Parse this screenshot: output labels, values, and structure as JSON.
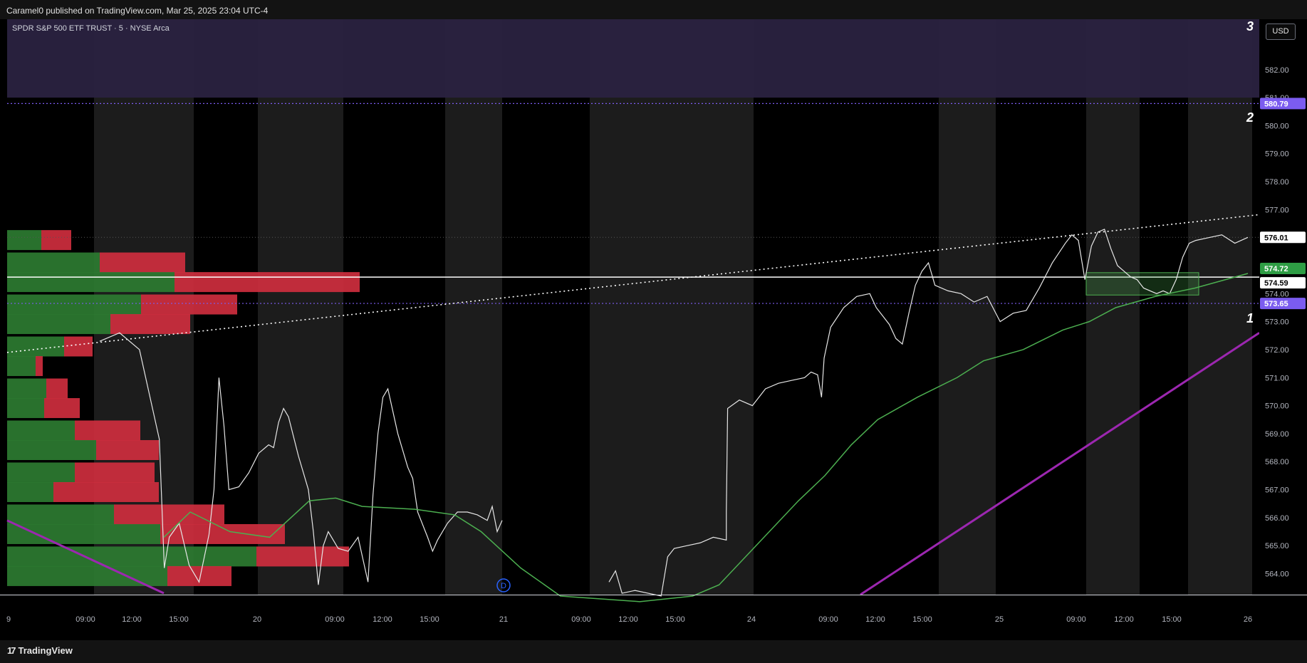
{
  "header": {
    "published_line": "Caramel0 published on TradingView.com, Mar 25, 2025 23:04 UTC-4"
  },
  "symbol": {
    "title": "SPDR S&P 500 ETF TRUST · 5 · NYSE Arca"
  },
  "currency_button": "USD",
  "zone_labels": [
    "3",
    "2",
    "1"
  ],
  "footer": {
    "brand": "TradingView",
    "logo_glyph": "17"
  },
  "colors": {
    "background": "#000000",
    "session_band": "#1c1c1c",
    "premium_zone": "#2a2240",
    "volume_buy": "#2e7d32",
    "volume_sell": "#d32f3f",
    "ma_line": "#4caf50",
    "trend_line": "#9c27b0",
    "level_line": "#7b5cf0",
    "price_line": "#ffffff"
  },
  "chart_data": {
    "type": "line",
    "symbol": "SPY",
    "interval": "5",
    "y_axis": {
      "range": [
        563.25,
        583.8
      ],
      "ticks": [
        "582.00",
        "581.00",
        "580.00",
        "579.00",
        "578.00",
        "577.00",
        "576.00",
        "575.00",
        "574.00",
        "573.00",
        "572.00",
        "571.00",
        "570.00",
        "569.00",
        "568.00",
        "567.00",
        "566.00",
        "565.00",
        "564.00"
      ]
    },
    "x_axis": {
      "ticks": [
        "9",
        "09:00",
        "12:00",
        "15:00",
        "20",
        "09:00",
        "12:00",
        "15:00",
        "21",
        "09:00",
        "12:00",
        "15:00",
        "24",
        "09:00",
        "12:00",
        "15:00",
        "25",
        "09:00",
        "12:00",
        "15:00",
        "26"
      ]
    },
    "price_labels": [
      {
        "value": "580.79",
        "style": "level"
      },
      {
        "value": "576.01",
        "style": "last"
      },
      {
        "value": "574.72",
        "style": "ma"
      },
      {
        "value": "574.59",
        "style": "line"
      },
      {
        "value": "573.65",
        "style": "level"
      }
    ],
    "levels": {
      "upper_dotted": 580.79,
      "lower_dotted": 573.65,
      "horizontal_white": 574.59,
      "premium_zone_bottom": 581.0
    },
    "price_series": [
      [
        0.0,
        572.3
      ],
      [
        0.02,
        572.6
      ],
      [
        0.04,
        572.0
      ],
      [
        0.06,
        568.8
      ],
      [
        0.065,
        564.2
      ],
      [
        0.07,
        565.3
      ],
      [
        0.08,
        565.8
      ],
      [
        0.09,
        564.3
      ],
      [
        0.1,
        563.7
      ],
      [
        0.11,
        565.4
      ],
      [
        0.115,
        567.0
      ],
      [
        0.12,
        571.0
      ],
      [
        0.125,
        569.3
      ],
      [
        0.13,
        567.0
      ],
      [
        0.14,
        567.1
      ],
      [
        0.15,
        567.6
      ],
      [
        0.16,
        568.3
      ],
      [
        0.17,
        568.6
      ],
      [
        0.175,
        568.5
      ],
      [
        0.18,
        569.4
      ],
      [
        0.185,
        569.9
      ],
      [
        0.19,
        569.6
      ],
      [
        0.2,
        568.2
      ],
      [
        0.21,
        567.0
      ],
      [
        0.215,
        565.5
      ],
      [
        0.22,
        563.6
      ],
      [
        0.225,
        565.0
      ],
      [
        0.23,
        565.5
      ],
      [
        0.24,
        564.9
      ],
      [
        0.25,
        564.8
      ],
      [
        0.26,
        565.3
      ],
      [
        0.27,
        563.7
      ],
      [
        0.275,
        566.8
      ],
      [
        0.28,
        569.0
      ],
      [
        0.285,
        570.3
      ],
      [
        0.29,
        570.6
      ],
      [
        0.3,
        569.0
      ],
      [
        0.31,
        567.8
      ],
      [
        0.315,
        567.4
      ],
      [
        0.32,
        566.2
      ],
      [
        0.33,
        565.3
      ],
      [
        0.335,
        564.8
      ],
      [
        0.34,
        565.2
      ],
      [
        0.35,
        565.8
      ],
      [
        0.36,
        566.2
      ],
      [
        0.37,
        566.2
      ],
      [
        0.38,
        566.1
      ],
      [
        0.39,
        565.9
      ],
      [
        0.395,
        566.4
      ],
      [
        0.4,
        565.5
      ],
      [
        0.405,
        565.9
      ]
    ],
    "price_series_2": [
      [
        0.51,
        563.7
      ],
      [
        0.515,
        564.1
      ],
      [
        0.52,
        563.3
      ],
      [
        0.53,
        563.4
      ],
      [
        0.55,
        563.2
      ],
      [
        0.555,
        564.6
      ],
      [
        0.56,
        564.9
      ],
      [
        0.57,
        565.0
      ],
      [
        0.58,
        565.1
      ],
      [
        0.59,
        565.3
      ],
      [
        0.6,
        565.2
      ],
      [
        0.6,
        566.2
      ],
      [
        0.601,
        569.9
      ],
      [
        0.61,
        570.2
      ],
      [
        0.62,
        570.0
      ],
      [
        0.63,
        570.6
      ],
      [
        0.64,
        570.8
      ],
      [
        0.65,
        570.9
      ],
      [
        0.66,
        571.0
      ],
      [
        0.665,
        571.2
      ],
      [
        0.67,
        571.1
      ],
      [
        0.673,
        570.3
      ],
      [
        0.675,
        571.7
      ],
      [
        0.68,
        572.8
      ],
      [
        0.69,
        573.5
      ],
      [
        0.7,
        573.9
      ],
      [
        0.71,
        574.0
      ],
      [
        0.715,
        573.5
      ],
      [
        0.72,
        573.2
      ],
      [
        0.725,
        572.9
      ],
      [
        0.73,
        572.4
      ],
      [
        0.735,
        572.2
      ],
      [
        0.74,
        573.3
      ],
      [
        0.745,
        574.3
      ],
      [
        0.75,
        574.8
      ],
      [
        0.755,
        575.1
      ],
      [
        0.76,
        574.3
      ],
      [
        0.77,
        574.1
      ],
      [
        0.78,
        574.0
      ],
      [
        0.79,
        573.7
      ],
      [
        0.8,
        573.9
      ],
      [
        0.81,
        573.0
      ],
      [
        0.82,
        573.3
      ],
      [
        0.83,
        573.4
      ],
      [
        0.84,
        574.2
      ],
      [
        0.85,
        575.1
      ],
      [
        0.86,
        575.8
      ],
      [
        0.865,
        576.1
      ],
      [
        0.87,
        575.9
      ],
      [
        0.875,
        574.5
      ],
      [
        0.88,
        575.7
      ],
      [
        0.885,
        576.2
      ],
      [
        0.89,
        576.3
      ],
      [
        0.895,
        575.6
      ],
      [
        0.9,
        575.0
      ],
      [
        0.91,
        574.6
      ],
      [
        0.915,
        574.5
      ],
      [
        0.92,
        574.2
      ],
      [
        0.93,
        574.0
      ],
      [
        0.935,
        574.1
      ],
      [
        0.94,
        574.0
      ],
      [
        0.945,
        574.5
      ],
      [
        0.95,
        575.3
      ],
      [
        0.955,
        575.8
      ],
      [
        0.96,
        575.9
      ],
      [
        0.97,
        576.0
      ],
      [
        0.98,
        576.1
      ],
      [
        0.99,
        575.8
      ],
      [
        1.0,
        576.01
      ]
    ],
    "ma_series": [
      [
        0.18,
        565.3
      ],
      [
        0.2,
        566.2
      ],
      [
        0.23,
        565.5
      ],
      [
        0.26,
        565.3
      ],
      [
        0.29,
        566.6
      ],
      [
        0.31,
        566.7
      ],
      [
        0.33,
        566.4
      ],
      [
        0.37,
        566.3
      ],
      [
        0.4,
        566.1
      ],
      [
        0.42,
        565.5
      ],
      [
        0.45,
        564.2
      ],
      [
        0.48,
        563.2
      ],
      [
        0.54,
        563.0
      ],
      [
        0.58,
        563.2
      ],
      [
        0.6,
        563.6
      ],
      [
        0.63,
        565.1
      ],
      [
        0.66,
        566.6
      ],
      [
        0.68,
        567.5
      ],
      [
        0.7,
        568.6
      ],
      [
        0.72,
        569.5
      ],
      [
        0.75,
        570.3
      ],
      [
        0.78,
        571.0
      ],
      [
        0.8,
        571.6
      ],
      [
        0.83,
        572.0
      ],
      [
        0.86,
        572.7
      ],
      [
        0.88,
        573.0
      ],
      [
        0.9,
        573.5
      ],
      [
        0.93,
        573.9
      ],
      [
        0.96,
        574.2
      ],
      [
        1.0,
        574.72
      ]
    ],
    "volume_profile": [
      {
        "price": 575.9,
        "buy": 48,
        "sell": 42
      },
      {
        "price": 575.1,
        "buy": 130,
        "sell": 120
      },
      {
        "price": 574.4,
        "buy": 235,
        "sell": 260
      },
      {
        "price": 573.6,
        "buy": 188,
        "sell": 135
      },
      {
        "price": 572.9,
        "buy": 145,
        "sell": 112
      },
      {
        "price": 572.1,
        "buy": 80,
        "sell": 40
      },
      {
        "price": 571.4,
        "buy": 40,
        "sell": 10
      },
      {
        "price": 570.6,
        "buy": 55,
        "sell": 30
      },
      {
        "price": 569.9,
        "buy": 52,
        "sell": 50
      },
      {
        "price": 569.1,
        "buy": 95,
        "sell": 92
      },
      {
        "price": 568.4,
        "buy": 125,
        "sell": 88
      },
      {
        "price": 567.6,
        "buy": 95,
        "sell": 112
      },
      {
        "price": 566.9,
        "buy": 65,
        "sell": 148
      },
      {
        "price": 566.1,
        "buy": 150,
        "sell": 155
      },
      {
        "price": 565.4,
        "buy": 215,
        "sell": 175
      },
      {
        "price": 564.6,
        "buy": 350,
        "sell": 130
      },
      {
        "price": 563.9,
        "buy": 225,
        "sell": 90
      }
    ]
  }
}
